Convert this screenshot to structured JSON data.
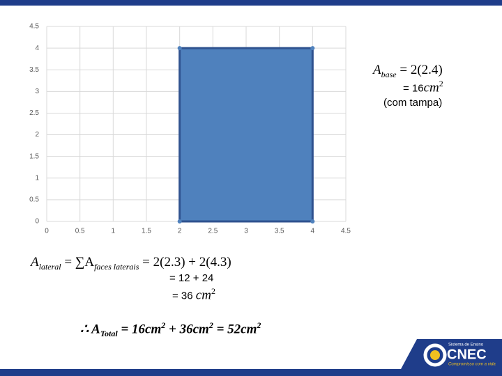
{
  "chart_data": {
    "type": "scatter",
    "series": [
      {
        "x": [
          2,
          2,
          4,
          4
        ],
        "values": [
          0,
          4,
          4,
          0
        ],
        "color": "#4f81bd"
      }
    ],
    "xlim": [
      0,
      4.5
    ],
    "xticks": [
      0,
      0.5,
      1,
      1.5,
      2,
      2.5,
      3,
      3.5,
      4,
      4.5
    ],
    "ylim": [
      0,
      4.5
    ],
    "yticks": [
      0,
      0.5,
      1,
      1.5,
      2,
      2.5,
      3,
      3.5,
      4,
      4.5
    ],
    "grid": true
  },
  "base_area": {
    "symbol": "A",
    "subscript": "base",
    "expression": " = 2(2.4)",
    "result": "=  16",
    "result_unit": "cm",
    "result_exponent": "2",
    "note": "(com tampa)"
  },
  "lateral_area": {
    "symbol": "A",
    "subscript": "lateral",
    "sum": " = ∑A",
    "sum_subscript": "faces laterais",
    "expression": " = 2(2.3) + 2(4.3)",
    "step": "= 12 + 24",
    "result": "= 36 ",
    "result_unit": "cm",
    "result_exponent": "2"
  },
  "total_area": {
    "therefore": "∴ ",
    "symbol": "A",
    "subscript": "Total",
    "term1": " = 16cm",
    "exp1": "2",
    "term2": " + 36cm",
    "exp2": "2",
    "term3": " = 52cm",
    "exp3": "2"
  },
  "logo": {
    "tagline_top": "Sistema de Ensino",
    "brand": "CNEC",
    "tagline_bottom": "Compromisso com a vida"
  }
}
